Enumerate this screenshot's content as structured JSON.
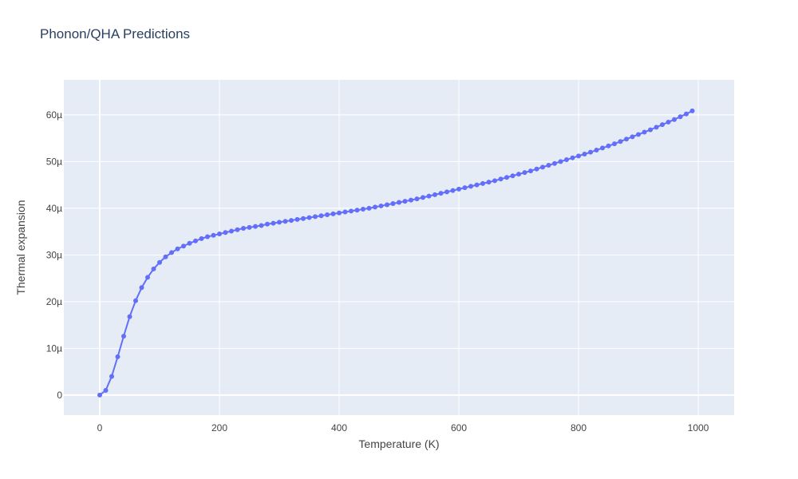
{
  "chart_data": {
    "type": "line",
    "title": "Phonon/QHA Predictions",
    "xlabel": "Temperature (K)",
    "ylabel": "Thermal expansion",
    "xlim": [
      -60,
      1060
    ],
    "ylim": [
      -4.3,
      67.5
    ],
    "x_ticks": [
      0,
      200,
      400,
      600,
      800,
      1000
    ],
    "x_tick_labels": [
      "0",
      "200",
      "400",
      "600",
      "800",
      "1000"
    ],
    "y_ticks": [
      0,
      10,
      20,
      30,
      40,
      50,
      60
    ],
    "y_tick_labels": [
      "0",
      "10µ",
      "20µ",
      "30µ",
      "40µ",
      "50µ",
      "60µ"
    ],
    "y_unit_note": "values in micro-units (×1e-6)",
    "grid": true,
    "colors": {
      "line": "#636efa",
      "plot_bg": "#e5ecf6",
      "grid": "#ffffff"
    },
    "series": [
      {
        "x": [
          0,
          10,
          20,
          30,
          40,
          50,
          60,
          70,
          80,
          90,
          100,
          110,
          120,
          130,
          140,
          150,
          160,
          170,
          180,
          190,
          200,
          210,
          220,
          230,
          240,
          250,
          260,
          270,
          280,
          290,
          300,
          310,
          320,
          330,
          340,
          350,
          360,
          370,
          380,
          390,
          400,
          410,
          420,
          430,
          440,
          450,
          460,
          470,
          480,
          490,
          500,
          510,
          520,
          530,
          540,
          550,
          560,
          570,
          580,
          590,
          600,
          610,
          620,
          630,
          640,
          650,
          660,
          670,
          680,
          690,
          700,
          710,
          720,
          730,
          740,
          750,
          760,
          770,
          780,
          790,
          800,
          810,
          820,
          830,
          840,
          850,
          860,
          870,
          880,
          890,
          900,
          910,
          920,
          930,
          940,
          950,
          960,
          970,
          980,
          990
        ],
        "values": [
          0.0,
          1.0,
          4.0,
          8.2,
          12.6,
          16.8,
          20.2,
          23.0,
          25.2,
          27.0,
          28.4,
          29.6,
          30.5,
          31.3,
          31.9,
          32.5,
          33.0,
          33.5,
          33.9,
          34.2,
          34.5,
          34.8,
          35.1,
          35.4,
          35.7,
          35.9,
          36.1,
          36.3,
          36.6,
          36.8,
          37.0,
          37.2,
          37.4,
          37.6,
          37.8,
          38.0,
          38.2,
          38.4,
          38.6,
          38.8,
          39.0,
          39.2,
          39.4,
          39.6,
          39.8,
          40.0,
          40.25,
          40.5,
          40.75,
          41.0,
          41.25,
          41.5,
          41.75,
          42.0,
          42.3,
          42.6,
          42.9,
          43.2,
          43.5,
          43.8,
          44.1,
          44.4,
          44.7,
          45.0,
          45.3,
          45.6,
          45.9,
          46.25,
          46.6,
          46.95,
          47.3,
          47.65,
          48.0,
          48.4,
          48.8,
          49.2,
          49.6,
          50.0,
          50.4,
          50.8,
          51.2,
          51.6,
          52.0,
          52.45,
          52.9,
          53.35,
          53.8,
          54.3,
          54.8,
          55.3,
          55.8,
          56.3,
          56.8,
          57.35,
          57.9,
          58.45,
          59.0,
          59.6,
          60.2,
          60.85
        ]
      }
    ]
  }
}
